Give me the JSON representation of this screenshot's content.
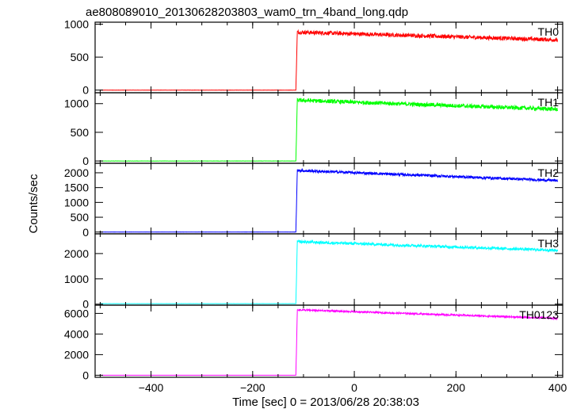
{
  "chart_data": {
    "type": "line",
    "title": "ae808089010_20130628203803_wam0_trn_4band_long.qdp",
    "xlabel": "Time [sec] 0 = 2013/06/28 20:38:03",
    "ylabel": "Counts/sec",
    "xlim": [
      -510,
      410
    ],
    "x_ticks": [
      -400,
      -200,
      0,
      200,
      400
    ],
    "x_tick_labels": [
      "−400",
      "−200",
      "0",
      "200",
      "400"
    ],
    "trigger_time": -115,
    "panels": [
      {
        "name": "TH0",
        "color": "#ff0000",
        "ylim": [
          -40,
          1030
        ],
        "yticks": [
          0,
          500,
          1000
        ],
        "baseline": 0,
        "start_value": 880,
        "end_value": 760,
        "noise": 30,
        "peak_x": -110,
        "peak_value": 940
      },
      {
        "name": "TH1",
        "color": "#00ff00",
        "ylim": [
          -40,
          1190
        ],
        "yticks": [
          0,
          500,
          1000
        ],
        "baseline": 0,
        "start_value": 1060,
        "end_value": 900,
        "noise": 35,
        "peak_x": -110,
        "peak_value": 1130
      },
      {
        "name": "TH2",
        "color": "#0000ff",
        "ylim": [
          -60,
          2320
        ],
        "yticks": [
          0,
          500,
          1000,
          1500,
          2000
        ],
        "baseline": 0,
        "start_value": 2080,
        "end_value": 1730,
        "noise": 45,
        "peak_x": -110,
        "peak_value": 2200
      },
      {
        "name": "TH3",
        "color": "#00ffff",
        "ylim": [
          -40,
          2780
        ],
        "yticks": [
          0,
          1000,
          2000
        ],
        "baseline": 20,
        "start_value": 2470,
        "end_value": 2120,
        "noise": 55,
        "peak_x": -110,
        "peak_value": 2600
      },
      {
        "name": "TH0123",
        "color": "#ff00ff",
        "ylim": [
          -200,
          6800
        ],
        "yticks": [
          0,
          2000,
          4000,
          6000
        ],
        "baseline": 0,
        "start_value": 6350,
        "end_value": 5500,
        "noise": 80,
        "peak_x": -110,
        "peak_value": 6550
      }
    ]
  }
}
